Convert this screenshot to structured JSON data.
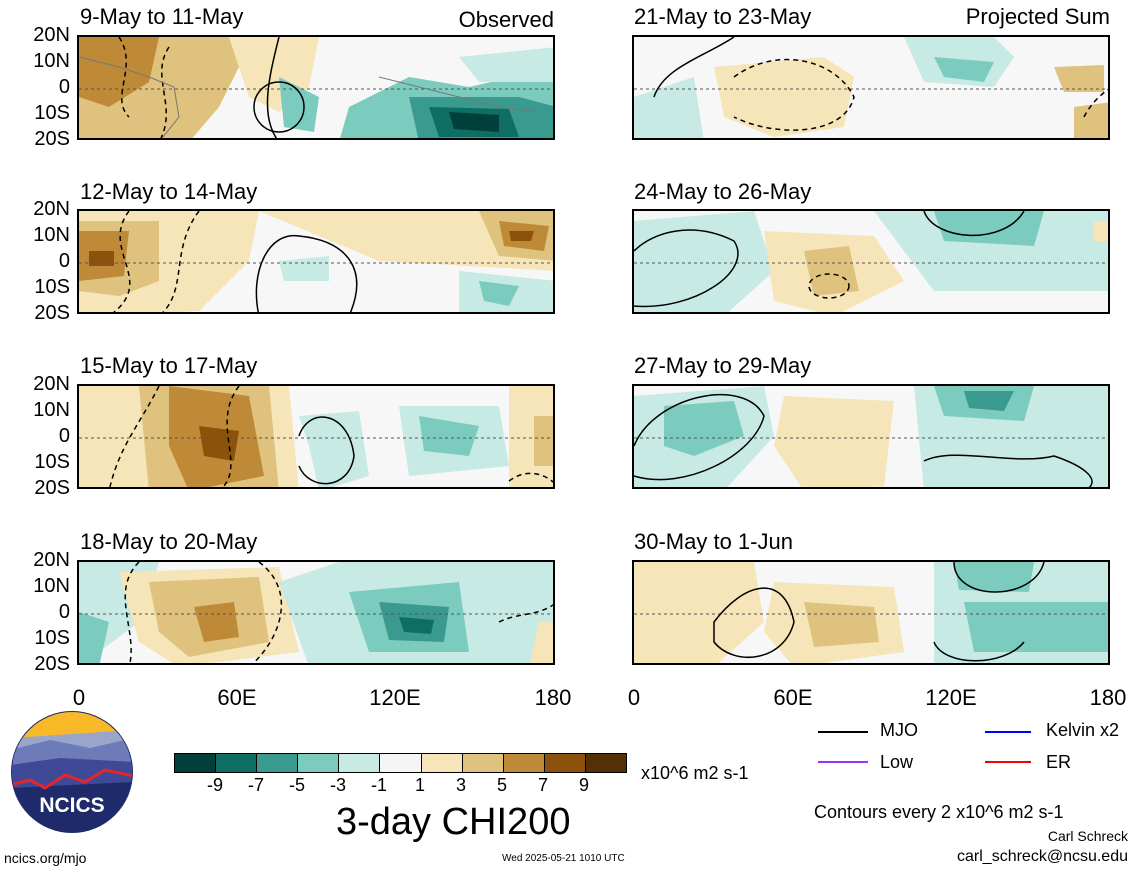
{
  "header": {
    "observed_tag": "Observed",
    "projected_tag": "Projected Sum"
  },
  "lat_labels": [
    "20N",
    "10N",
    "0",
    "10S",
    "20S"
  ],
  "lon_labels": [
    "0",
    "60E",
    "120E",
    "180"
  ],
  "panels_left": [
    {
      "title": "9-May to 11-May"
    },
    {
      "title": "12-May to 14-May"
    },
    {
      "title": "15-May to 17-May"
    },
    {
      "title": "18-May to 20-May"
    }
  ],
  "panels_right": [
    {
      "title": "21-May to 23-May"
    },
    {
      "title": "24-May to 26-May"
    },
    {
      "title": "27-May to 29-May"
    },
    {
      "title": "30-May to 1-Jun"
    }
  ],
  "colorbar": {
    "labels": [
      "-9",
      "-7",
      "-5",
      "-3",
      "-1",
      "1",
      "3",
      "5",
      "7",
      "9"
    ],
    "colors": [
      "#01403a",
      "#0e6e64",
      "#3a9a8f",
      "#7ccbbf",
      "#c7eae4",
      "#f5f5f5",
      "#f5e5b8",
      "#dfc27d",
      "#bf8a38",
      "#8c510a",
      "#543005"
    ],
    "units": "x10^6 m2 s-1"
  },
  "title": "3-day CHI200",
  "legend": {
    "items": [
      {
        "label": "MJO",
        "color": "#000000"
      },
      {
        "label": "Kelvin x2",
        "color": "#0000ff"
      },
      {
        "label": "Low",
        "color": "#9b30ff"
      },
      {
        "label": "ER",
        "color": "#ff0000"
      }
    ],
    "contour_note": "Contours every 2 x10^6 m2 s-1"
  },
  "credits": {
    "author": "Carl Schreck",
    "email": "carl_schreck@ncsu.edu"
  },
  "footer": {
    "url": "ncics.org/mjo",
    "timestamp": "Wed 2025-05-21 1010 UTC"
  },
  "logo": {
    "text": "NCICS"
  }
}
